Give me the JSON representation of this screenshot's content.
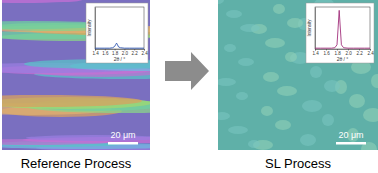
{
  "chart_data": [
    {
      "type": "line",
      "xlabel": "2θ / °",
      "ylabel": "Intensity",
      "x": [
        1.4,
        1.5,
        1.6,
        1.7,
        1.76,
        1.8,
        1.82,
        1.84,
        1.86,
        1.88,
        1.92,
        2.0,
        2.1,
        2.2,
        2.3,
        2.4
      ],
      "values": [
        0.02,
        0.02,
        0.02,
        0.02,
        0.03,
        0.06,
        0.1,
        0.14,
        0.1,
        0.05,
        0.03,
        0.02,
        0.02,
        0.02,
        0.02,
        0.02
      ],
      "color": "#2f56b0",
      "xlim": [
        1.4,
        2.4
      ],
      "xticks": [
        1.4,
        1.6,
        1.8,
        {
          "value": 2,
          "label": "2.0"
        },
        2.2,
        2.4
      ],
      "ylim": [
        0,
        1
      ],
      "tick_labels": "x"
    },
    {
      "type": "line",
      "xlabel": "2θ / °",
      "ylabel": "Intensity",
      "x": [
        1.4,
        1.5,
        1.6,
        1.7,
        1.76,
        1.8,
        1.82,
        1.84,
        1.86,
        1.88,
        1.92,
        2.0,
        2.1,
        2.2,
        2.3,
        2.4
      ],
      "values": [
        0.02,
        0.02,
        0.02,
        0.02,
        0.03,
        0.1,
        0.5,
        0.92,
        0.5,
        0.1,
        0.03,
        0.02,
        0.02,
        0.02,
        0.02,
        0.02
      ],
      "color": "#a2307c",
      "xlim": [
        1.4,
        2.4
      ],
      "xticks": [
        1.4,
        1.6,
        1.8,
        {
          "value": 2,
          "label": "2.0"
        },
        2.2,
        2.4
      ],
      "ylim": [
        0,
        1
      ],
      "tick_labels": "x"
    }
  ],
  "panels": [
    {
      "caption": "Reference Process",
      "scale_bar": "20 μm"
    },
    {
      "caption": "SL Process",
      "scale_bar": "20 μm"
    }
  ]
}
